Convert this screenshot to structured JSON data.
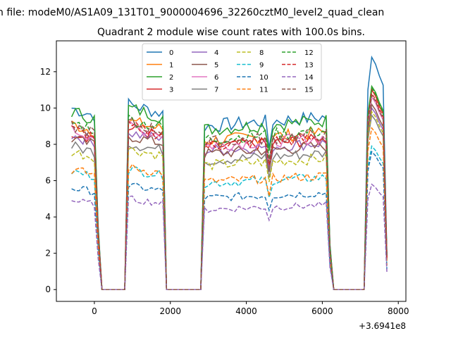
{
  "figure": {
    "suptitle": "n file: modeM0/AS1A09_131T01_9000004696_32260cztM0_level2_quad_clean",
    "title": "Quadrant 2 module wise count rates with 100.0s bins.",
    "offset_label": "+3.6941e8"
  },
  "chart_data": {
    "type": "line",
    "title": "Quadrant 2 module wise count rates with 100.0s bins.",
    "xlabel": "",
    "ylabel": "",
    "x_offset": 369410000,
    "xlim": [
      -1000,
      8200
    ],
    "ylim": [
      -0.65,
      13.7
    ],
    "xticks": [
      0,
      2000,
      4000,
      6000,
      8000
    ],
    "yticks": [
      0,
      2,
      4,
      6,
      8,
      10,
      12
    ],
    "xtick_labels": [
      "0",
      "2000",
      "4000",
      "6000",
      "8000"
    ],
    "ytick_labels": [
      "0",
      "2",
      "4",
      "6",
      "8",
      "10",
      "12"
    ],
    "grid": false,
    "legend": {
      "placement": "upper-center",
      "columns": 4
    },
    "segments": [
      {
        "x_start": -600,
        "x_end": 0,
        "level_start": 1.0,
        "level_end": 0.96
      },
      {
        "x_start": 100,
        "x_end": 200,
        "level_start": 0.35,
        "level_end": 0.0
      },
      {
        "x_start": 300,
        "x_end": 800,
        "level_start": 0.0,
        "level_end": 0.0
      },
      {
        "x_start": 900,
        "x_end": 1800,
        "level_start": 1.02,
        "level_end": 0.97
      },
      {
        "x_start": 1900,
        "x_end": 1900,
        "level_start": 0.0,
        "level_end": 0.0
      },
      {
        "x_start": 2000,
        "x_end": 2800,
        "level_start": 0.0,
        "level_end": 0.0
      },
      {
        "x_start": 2900,
        "x_end": 6100,
        "level_start": 0.9,
        "level_end": 0.95
      },
      {
        "x_start": 6200,
        "x_end": 6200,
        "level_start": 0.25,
        "level_end": 0.25
      },
      {
        "x_start": 6300,
        "x_end": 7100,
        "level_start": 0.0,
        "level_end": 0.0
      },
      {
        "x_start": 7200,
        "x_end": 7600,
        "level_start": 1.0,
        "level_end": 1.0
      },
      {
        "x_start": 7700,
        "x_end": 7700,
        "level_start": 0.2,
        "level_end": 0.2
      }
    ],
    "dip_times": [
      4600
    ],
    "series": [
      {
        "name": "0",
        "color": "#1f77b4",
        "dash": "solid",
        "level": 10.0,
        "peak": 12.8
      },
      {
        "name": "1",
        "color": "#ff7f0e",
        "dash": "solid",
        "level": 9.1,
        "peak": 11.0
      },
      {
        "name": "2",
        "color": "#2ca02c",
        "dash": "solid",
        "level": 9.8,
        "peak": 11.2
      },
      {
        "name": "3",
        "color": "#d62728",
        "dash": "solid",
        "level": 8.7,
        "peak": 11.0
      },
      {
        "name": "4",
        "color": "#9467bd",
        "dash": "solid",
        "level": 8.5,
        "peak": 10.0
      },
      {
        "name": "5",
        "color": "#8c564b",
        "dash": "solid",
        "level": 8.3,
        "peak": 10.2
      },
      {
        "name": "6",
        "color": "#e377c2",
        "dash": "solid",
        "level": 8.8,
        "peak": 10.6
      },
      {
        "name": "7",
        "color": "#7f7f7f",
        "dash": "solid",
        "level": 7.9,
        "peak": 9.6
      },
      {
        "name": "8",
        "color": "#bcbd22",
        "dash": "dashed",
        "level": 7.6,
        "peak": 9.8
      },
      {
        "name": "9",
        "color": "#17becf",
        "dash": "dashed",
        "level": 6.5,
        "peak": 7.9
      },
      {
        "name": "10",
        "color": "#1f77b4",
        "dash": "dashed",
        "level": 5.6,
        "peak": 7.6
      },
      {
        "name": "11",
        "color": "#ff7f0e",
        "dash": "dashed",
        "level": 6.6,
        "peak": 8.9
      },
      {
        "name": "12",
        "color": "#2ca02c",
        "dash": "dashed",
        "level": 9.2,
        "peak": 11.1
      },
      {
        "name": "13",
        "color": "#d62728",
        "dash": "dashed",
        "level": 8.8,
        "peak": 10.8
      },
      {
        "name": "14",
        "color": "#9467bd",
        "dash": "dashed",
        "level": 4.9,
        "peak": 5.8
      },
      {
        "name": "15",
        "color": "#8c564b",
        "dash": "dashed",
        "level": 9.0,
        "peak": 10.7
      }
    ]
  }
}
